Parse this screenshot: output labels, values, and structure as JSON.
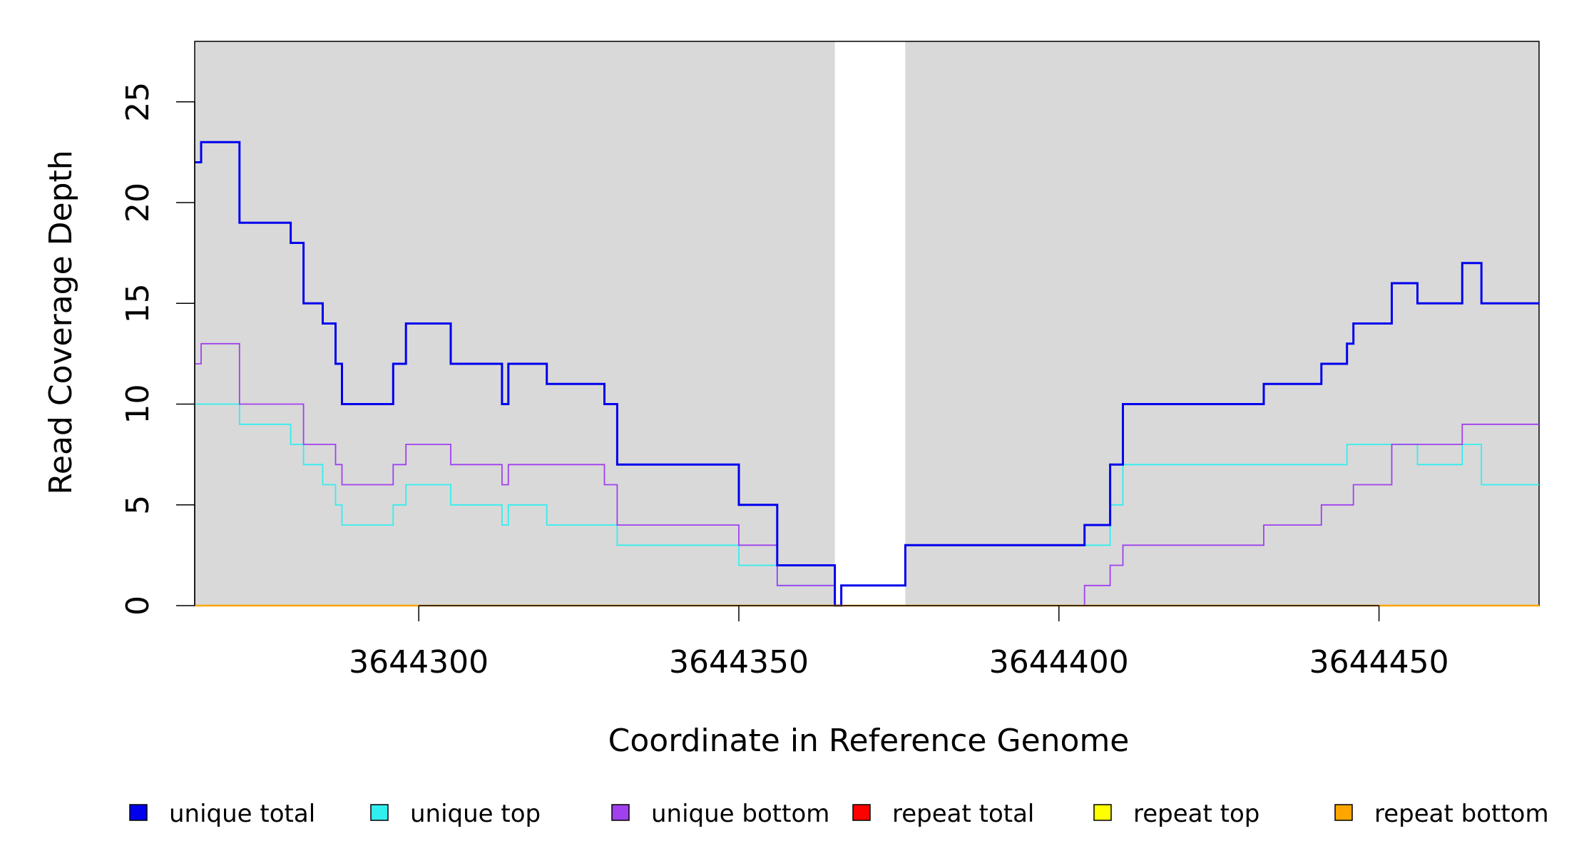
{
  "chart_data": {
    "type": "line",
    "step": true,
    "xlabel": "Coordinate in Reference Genome",
    "ylabel": "Read Coverage Depth",
    "xlim": [
      3644265,
      3644475
    ],
    "ylim": [
      0,
      28
    ],
    "x_ticks": [
      3644300,
      3644350,
      3644400,
      3644450
    ],
    "y_ticks": [
      0,
      5,
      10,
      15,
      20,
      25
    ],
    "x_tick_labels": [
      "3644300",
      "3644350",
      "3644400",
      "3644450"
    ],
    "y_tick_labels": [
      "0",
      "5",
      "10",
      "15",
      "20",
      "25"
    ],
    "background_color": "#d9d9d9",
    "unshaded_region": [
      3644365,
      3644376
    ],
    "legend_position": "bottom",
    "series": [
      {
        "name": "unique total",
        "color": "#0000ee",
        "points": [
          [
            3644265,
            22
          ],
          [
            3644266,
            23
          ],
          [
            3644272,
            19
          ],
          [
            3644280,
            18
          ],
          [
            3644282,
            15
          ],
          [
            3644285,
            14
          ],
          [
            3644287,
            12
          ],
          [
            3644288,
            10
          ],
          [
            3644296,
            12
          ],
          [
            3644298,
            14
          ],
          [
            3644305,
            12
          ],
          [
            3644313,
            10
          ],
          [
            3644314,
            12
          ],
          [
            3644320,
            11
          ],
          [
            3644329,
            10
          ],
          [
            3644331,
            7
          ],
          [
            3644350,
            5
          ],
          [
            3644356,
            2
          ],
          [
            3644365,
            0
          ],
          [
            3644366,
            1
          ],
          [
            3644376,
            3
          ],
          [
            3644404,
            4
          ],
          [
            3644408,
            7
          ],
          [
            3644410,
            10
          ],
          [
            3644432,
            11
          ],
          [
            3644441,
            12
          ],
          [
            3644445,
            13
          ],
          [
            3644446,
            14
          ],
          [
            3644452,
            16
          ],
          [
            3644456,
            15
          ],
          [
            3644463,
            17
          ],
          [
            3644466,
            15
          ],
          [
            3644475,
            15
          ]
        ]
      },
      {
        "name": "unique top",
        "color": "#33eeee",
        "points": [
          [
            3644265,
            10
          ],
          [
            3644272,
            9
          ],
          [
            3644280,
            8
          ],
          [
            3644282,
            7
          ],
          [
            3644285,
            6
          ],
          [
            3644287,
            5
          ],
          [
            3644288,
            4
          ],
          [
            3644296,
            5
          ],
          [
            3644298,
            6
          ],
          [
            3644305,
            5
          ],
          [
            3644313,
            4
          ],
          [
            3644314,
            5
          ],
          [
            3644320,
            4
          ],
          [
            3644331,
            3
          ],
          [
            3644350,
            2
          ],
          [
            3644356,
            1
          ],
          [
            3644365,
            0
          ],
          [
            3644366,
            1
          ],
          [
            3644376,
            3
          ],
          [
            3644408,
            5
          ],
          [
            3644410,
            7
          ],
          [
            3644445,
            8
          ],
          [
            3644456,
            7
          ],
          [
            3644463,
            8
          ],
          [
            3644466,
            6
          ],
          [
            3644475,
            6
          ]
        ]
      },
      {
        "name": "unique bottom",
        "color": "#a040ee",
        "points": [
          [
            3644265,
            12
          ],
          [
            3644266,
            13
          ],
          [
            3644272,
            10
          ],
          [
            3644282,
            8
          ],
          [
            3644287,
            7
          ],
          [
            3644288,
            6
          ],
          [
            3644296,
            7
          ],
          [
            3644298,
            8
          ],
          [
            3644305,
            7
          ],
          [
            3644313,
            6
          ],
          [
            3644314,
            7
          ],
          [
            3644329,
            6
          ],
          [
            3644331,
            4
          ],
          [
            3644350,
            3
          ],
          [
            3644356,
            1
          ],
          [
            3644365,
            0
          ],
          [
            3644404,
            1
          ],
          [
            3644408,
            2
          ],
          [
            3644410,
            3
          ],
          [
            3644432,
            4
          ],
          [
            3644441,
            5
          ],
          [
            3644446,
            6
          ],
          [
            3644452,
            8
          ],
          [
            3644463,
            9
          ],
          [
            3644475,
            9
          ]
        ]
      },
      {
        "name": "repeat total",
        "color": "#ff0000",
        "points": [
          [
            3644265,
            0
          ],
          [
            3644475,
            0
          ]
        ]
      },
      {
        "name": "repeat top",
        "color": "#ffff00",
        "points": [
          [
            3644265,
            0
          ],
          [
            3644475,
            0
          ]
        ]
      },
      {
        "name": "repeat bottom",
        "color": "#ffa500",
        "points": [
          [
            3644265,
            0
          ],
          [
            3644475,
            0
          ]
        ]
      }
    ]
  },
  "legend": {
    "items": [
      {
        "label": "unique total",
        "color": "#0000ee"
      },
      {
        "label": "unique top",
        "color": "#33eeee"
      },
      {
        "label": "unique bottom",
        "color": "#a040ee"
      },
      {
        "label": "repeat total",
        "color": "#ff0000"
      },
      {
        "label": "repeat top",
        "color": "#ffff00"
      },
      {
        "label": "repeat bottom",
        "color": "#ffa500"
      }
    ]
  }
}
